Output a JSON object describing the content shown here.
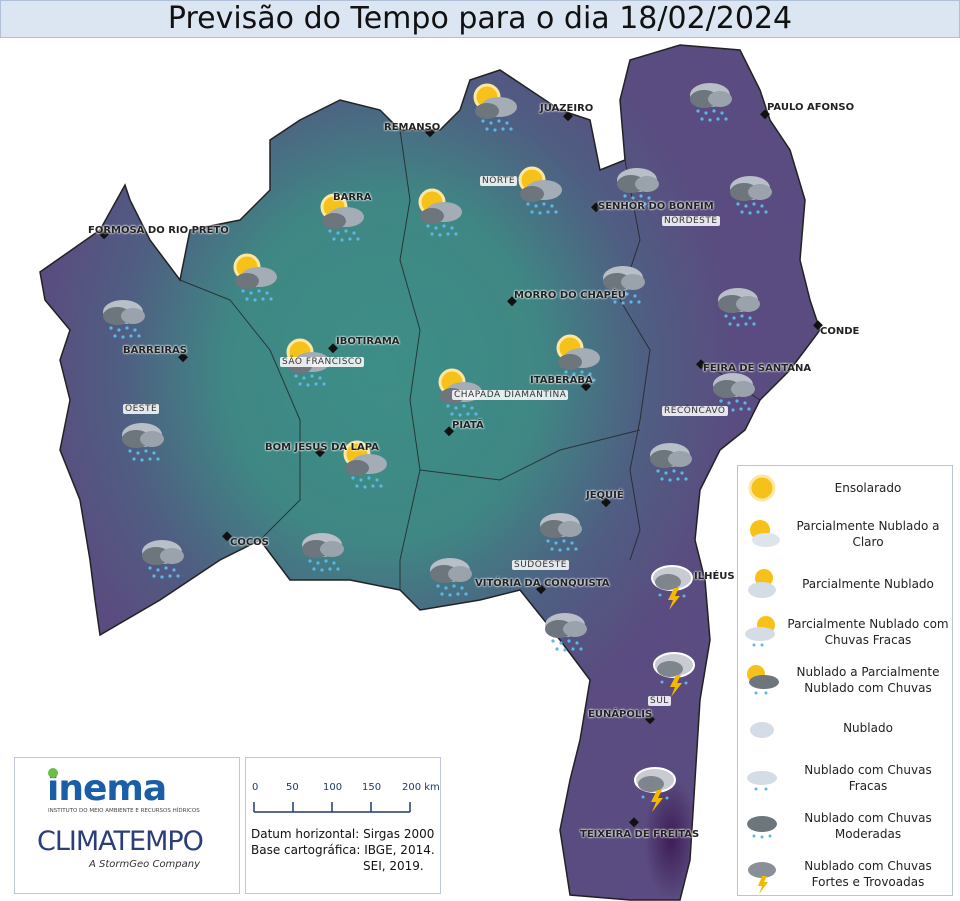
{
  "title": "Previsão do Tempo para o dia 18/02/2024",
  "cities": [
    "REMANSO",
    "JUAZEIRO",
    "PAULO AFONSO",
    "BARRA",
    "FORMOSA DO RIO PRETO",
    "SENHOR DO BONFIM",
    "MORRO DO CHAPÉU",
    "CONDE",
    "BARREIRAS",
    "IBOTIRAMA",
    "FEIRA DE SANTANA",
    "ITABERABA",
    "PIATÃ",
    "BOM JESUS DA LAPA",
    "JEQUIÉ",
    "COCOS",
    "VITÓRIA DA CONQUISTA",
    "ILHÉUS",
    "EUNÁPOLIS",
    "TEIXEIRA DE FREITAS"
  ],
  "regions": [
    "NORTE",
    "NORDESTE",
    "SÃO FRANCISCO",
    "OESTE",
    "CHAPADA DIAMANTINA",
    "RECÔNCAVO",
    "SUDOESTE",
    "SUL"
  ],
  "legend": [
    {
      "icon": "sun-icon",
      "label": "Ensolarado"
    },
    {
      "icon": "sun-cloud-icon",
      "label": "Parcialmente Nublado a Claro"
    },
    {
      "icon": "partly-cloudy-icon",
      "label": "Parcialmente Nublado"
    },
    {
      "icon": "partly-cloudy-light-rain-icon",
      "label": "Parcialmente Nublado com Chuvas Fracas"
    },
    {
      "icon": "sun-dark-cloud-rain-icon",
      "label": "Nublado a Parcialmente Nublado com Chuvas"
    },
    {
      "icon": "cloud-icon",
      "label": "Nublado"
    },
    {
      "icon": "cloud-light-rain-icon",
      "label": "Nublado com Chuvas Fracas"
    },
    {
      "icon": "cloud-moderate-rain-icon",
      "label": "Nublado com Chuvas Moderadas"
    },
    {
      "icon": "storm-icon",
      "label": "Nublado com Chuvas Fortes e Trovoadas"
    }
  ],
  "logos": {
    "inema": "inema",
    "inema_sub": "INSTITUTO DO MEIO AMBIENTE E RECURSOS HÍDRICOS",
    "climatempo": "CLIMATEMPO",
    "climatempo_sub": "A StormGeo Company"
  },
  "scale": {
    "ticks": [
      "0",
      "50",
      "100",
      "150",
      "200 km"
    ]
  },
  "credits": {
    "datum": "Datum horizontal: Sirgas 2000",
    "base": "Base cartográfica: IBGE, 2014.",
    "sei": "SEI, 2019."
  },
  "colors": {
    "teal": "#3f8a86",
    "purple": "#5b4d82",
    "dark_purple": "#3e1f56"
  }
}
